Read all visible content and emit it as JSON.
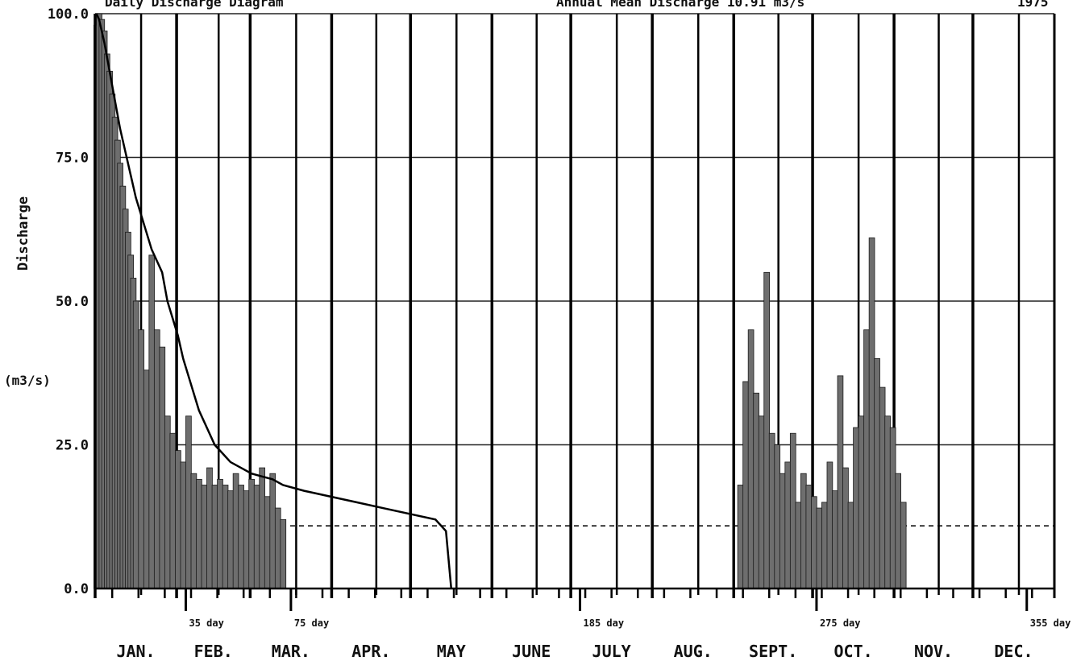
{
  "header": {
    "left": "Daily Discharge Diagram",
    "middle": "Annual Mean Discharge 10.91 m3/s",
    "year": "1975"
  },
  "chart_data": {
    "type": "bar",
    "ylabel": "Discharge",
    "yunit": "(m3/s)",
    "ylim": [
      0,
      100
    ],
    "yticks": [
      {
        "value": 0,
        "label": "0.0"
      },
      {
        "value": 25,
        "label": "25.0"
      },
      {
        "value": 50,
        "label": "50.0"
      },
      {
        "value": 75,
        "label": "75.0"
      },
      {
        "value": 100,
        "label": "100.0"
      }
    ],
    "months": [
      "JAN.",
      "FEB.",
      "MAR.",
      "APR.",
      "MAY",
      "JUNE",
      "JULY",
      "AUG.",
      "SEPT.",
      "OCT.",
      "NOV.",
      "DEC."
    ],
    "day_markers": [
      {
        "day": 35,
        "label": "35 day"
      },
      {
        "day": 75,
        "label": "75 day"
      },
      {
        "day": 185,
        "label": "185 day"
      },
      {
        "day": 275,
        "label": "275 day"
      },
      {
        "day": 355,
        "label": "355 day"
      }
    ],
    "mean_discharge": 10.91,
    "grid": true,
    "series": [
      {
        "name": "daily discharge",
        "type": "bar",
        "x": [
          1,
          2,
          3,
          4,
          5,
          6,
          7,
          8,
          9,
          10,
          11,
          12,
          13,
          14,
          15,
          16,
          18,
          20,
          22,
          24,
          26,
          28,
          30,
          32,
          34,
          36,
          38,
          40,
          42,
          44,
          46,
          48,
          50,
          52,
          54,
          56,
          58,
          60,
          62,
          64,
          66,
          68,
          70,
          72,
          246,
          248,
          250,
          252,
          254,
          256,
          258,
          260,
          262,
          264,
          266,
          268,
          270,
          272,
          274,
          276,
          278,
          280,
          282,
          284,
          286,
          288,
          290,
          292,
          294,
          296,
          298,
          300,
          302,
          304,
          306,
          308
        ],
        "values": [
          98,
          100,
          99,
          97,
          93,
          90,
          86,
          82,
          78,
          74,
          70,
          66,
          62,
          58,
          54,
          50,
          45,
          38,
          58,
          45,
          42,
          30,
          27,
          24,
          22,
          30,
          20,
          19,
          18,
          21,
          18,
          19,
          18,
          17,
          20,
          18,
          17,
          19,
          18,
          21,
          16,
          20,
          14,
          12,
          18,
          36,
          45,
          34,
          30,
          55,
          27,
          25,
          20,
          22,
          27,
          15,
          20,
          18,
          16,
          14,
          15,
          22,
          17,
          37,
          21,
          15,
          28,
          30,
          45,
          61,
          40,
          35,
          30,
          28,
          20,
          15
        ]
      },
      {
        "name": "flow duration curve",
        "type": "line",
        "x": [
          1,
          2,
          3,
          4,
          6,
          8,
          10,
          12,
          14,
          16,
          18,
          20,
          22,
          24,
          26,
          28,
          30,
          32,
          34,
          36,
          38,
          40,
          42,
          44,
          46,
          48,
          50,
          52,
          56,
          60,
          64,
          68,
          72,
          80,
          90,
          100,
          110,
          120,
          130,
          134,
          135,
          136
        ],
        "values": [
          100,
          99,
          97,
          95,
          90,
          85,
          80,
          76,
          72,
          68,
          65,
          62,
          59,
          57,
          55,
          50,
          47,
          44,
          40,
          37,
          34,
          31,
          29,
          27,
          25,
          24,
          23,
          22,
          21,
          20,
          19.5,
          19,
          18,
          17,
          16,
          15,
          14,
          13,
          12,
          10,
          5,
          0
        ]
      }
    ]
  }
}
